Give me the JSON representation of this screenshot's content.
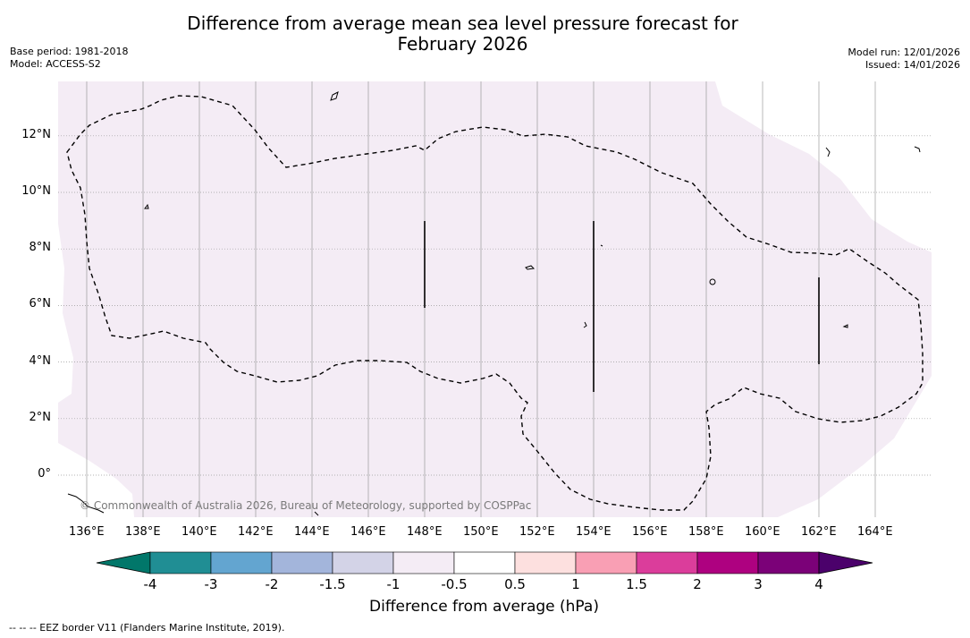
{
  "title": {
    "line1": "Difference from average mean sea level pressure forecast for",
    "line2": "February 2026"
  },
  "meta_left": {
    "base_period": "Base period: 1981-2018",
    "model": "Model: ACCESS-S2"
  },
  "meta_right": {
    "model_run": "Model run: 12/01/2026",
    "issued": "Issued: 14/01/2026"
  },
  "map": {
    "x_ticks": [
      {
        "value": 136,
        "label": "136°E"
      },
      {
        "value": 138,
        "label": "138°E"
      },
      {
        "value": 140,
        "label": "140°E"
      },
      {
        "value": 142,
        "label": "142°E"
      },
      {
        "value": 144,
        "label": "144°E"
      },
      {
        "value": 146,
        "label": "146°E"
      },
      {
        "value": 148,
        "label": "148°E"
      },
      {
        "value": 150,
        "label": "150°E"
      },
      {
        "value": 152,
        "label": "152°E"
      },
      {
        "value": 154,
        "label": "154°E"
      },
      {
        "value": 156,
        "label": "156°E"
      },
      {
        "value": 158,
        "label": "158°E"
      },
      {
        "value": 160,
        "label": "160°E"
      },
      {
        "value": 162,
        "label": "162°E"
      },
      {
        "value": 164,
        "label": "164°E"
      }
    ],
    "y_ticks": [
      {
        "value": 12,
        "label": "12°N"
      },
      {
        "value": 10,
        "label": "10°N"
      },
      {
        "value": 8,
        "label": "8°N"
      },
      {
        "value": 6,
        "label": "6°N"
      },
      {
        "value": 4,
        "label": "4°N"
      },
      {
        "value": 2,
        "label": "2°N"
      },
      {
        "value": 0,
        "label": "0°"
      }
    ],
    "lon_range": [
      135,
      166
    ],
    "lat_range": [
      -1.5,
      14
    ],
    "fill_category": "-0.5 to -1 hPa",
    "fill_color": "#f4ecf5",
    "copyright": "© Commonwealth of Australia 2026, Bureau of Meteorology, supported by COSPPac"
  },
  "colorbar": {
    "labels": [
      "-4",
      "-3",
      "-2",
      "-1.5",
      "-1",
      "-0.5",
      "0.5",
      "1",
      "1.5",
      "2",
      "3",
      "4"
    ],
    "colors": [
      "#208e94",
      "#63a5d0",
      "#a3b5db",
      "#d3d3e7",
      "#f4ecf5",
      "#ffffff",
      "#fde0df",
      "#f99fb4",
      "#db3d9b",
      "#ae0180",
      "#7b0178"
    ],
    "under_color": "#01776a",
    "over_color": "#4b016b",
    "title": "Difference from average (hPa)"
  },
  "footer": "--  --  -- EEZ border V11 (Flanders Marine Institute, 2019)."
}
